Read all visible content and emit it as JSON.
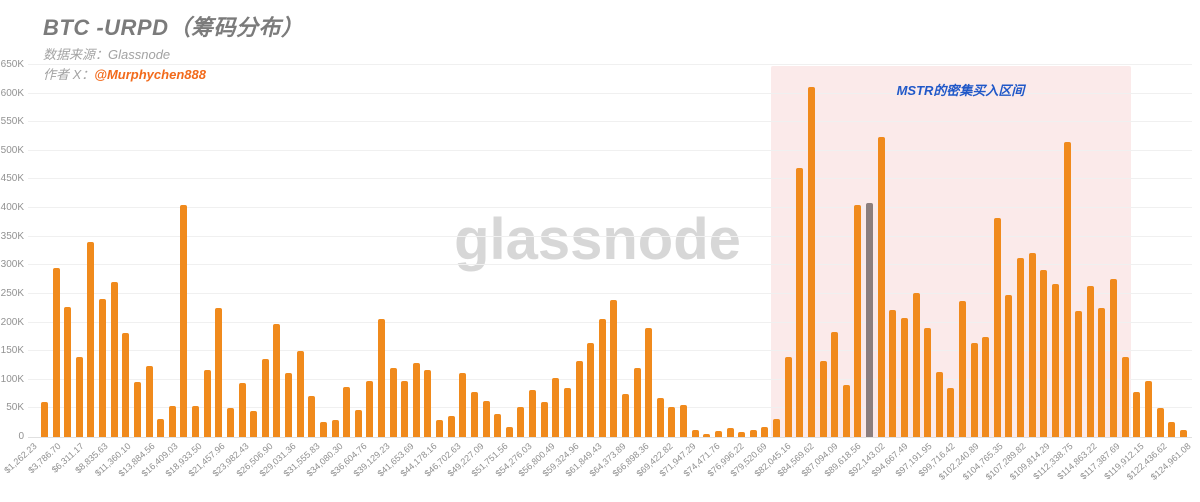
{
  "header": {
    "title": "BTC -URPD（筹码分布）",
    "source_line": "数据来源：Glassnode",
    "author_label": "作者 X：",
    "author_handle": "@Murphychen888"
  },
  "watermark": "glassnode",
  "annotation": {
    "text": "MSTR的密集买入区间"
  },
  "colors": {
    "bar_orange": "#f08a1c",
    "bar_gray": "#8c7e7e",
    "highlight_pink": "#fbecec",
    "annotation_blue": "#2058c8",
    "author_orange": "#f26a1b",
    "title_gray": "#7b7b7b"
  },
  "chart_data": {
    "type": "bar",
    "title": "BTC -URPD（筹码分布）",
    "xlabel": "",
    "ylabel": "",
    "ylim": [
      0,
      650000
    ],
    "grid": true,
    "y_tick_labels": [
      "0",
      "50K",
      "100K",
      "150K",
      "200K",
      "250K",
      "300K",
      "350K",
      "400K",
      "450K",
      "500K",
      "550K",
      "600K",
      "650K"
    ],
    "x_tick_labels": [
      "$1,262.23",
      "$3,786.70",
      "$6,311.17",
      "$8,835.63",
      "$11,360.10",
      "$13,884.56",
      "$16,409.03",
      "$18,933.50",
      "$21,457.96",
      "$23,982.43",
      "$26,506.90",
      "$29,031.36",
      "$31,555.83",
      "$34,080.30",
      "$36,604.76",
      "$39,129.23",
      "$41,653.69",
      "$44,178.16",
      "$46,702.63",
      "$49,227.09",
      "$51,751.56",
      "$54,276.03",
      "$56,800.49",
      "$59,324.96",
      "$61,849.43",
      "$64,373.89",
      "$66,898.36",
      "$69,422.82",
      "$71,947.29",
      "$74,471.76",
      "$76,996.22",
      "$79,520.69",
      "$82,045.16",
      "$84,569.62",
      "$87,094.09",
      "$89,618.56",
      "$92,143.02",
      "$94,667.49",
      "$97,191.95",
      "$99,716.42",
      "$102,240.89",
      "$104,765.35",
      "$107,289.82",
      "$109,814.29",
      "$112,338.75",
      "$114,863.22",
      "$117,387.69",
      "$119,912.15",
      "$122,436.62",
      "$124,961.08"
    ],
    "bars_per_label": 2,
    "values_k": [
      62,
      295,
      228,
      140,
      340,
      242,
      270,
      182,
      96,
      124,
      31,
      54,
      405,
      55,
      117,
      226,
      51,
      95,
      46,
      137,
      197,
      111,
      150,
      71,
      26,
      30,
      88,
      47,
      98,
      207,
      120,
      97,
      130,
      117,
      29,
      37,
      112,
      79,
      63,
      41,
      18,
      53,
      82,
      62,
      103,
      86,
      133,
      164,
      206,
      240,
      76,
      120,
      190,
      68,
      53,
      56,
      13,
      6,
      10,
      15,
      8,
      13,
      18,
      31,
      140,
      470,
      611,
      132,
      184,
      91,
      406,
      409,
      524,
      222,
      208,
      251,
      190,
      114,
      85,
      237,
      164,
      175,
      382,
      248,
      312,
      322,
      291,
      267,
      516,
      221,
      263,
      225,
      276,
      140,
      78,
      97,
      50,
      27,
      13
    ],
    "gray_bar_index": 71,
    "highlight": {
      "label": "MSTR的密集买入区间",
      "start_bar_index": 63,
      "end_bar_index": 93
    },
    "legend": null
  }
}
